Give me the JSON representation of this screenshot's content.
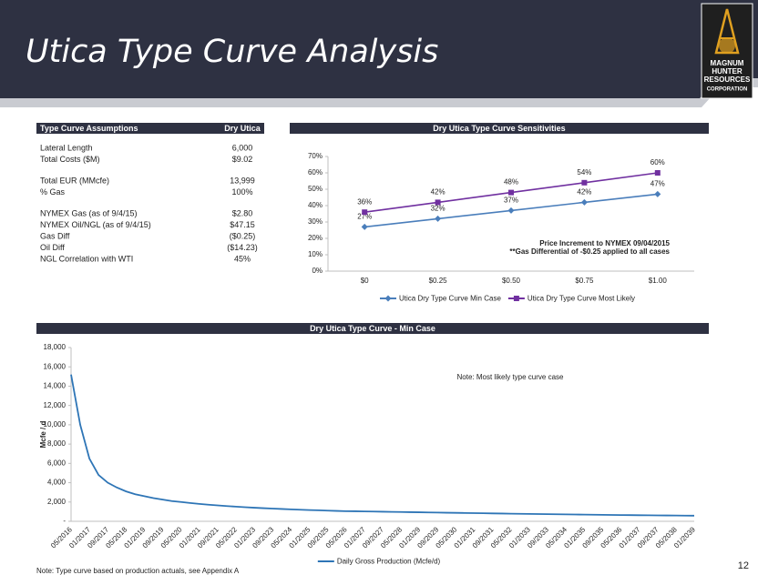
{
  "header": {
    "title": "Utica Type Curve Analysis",
    "logo": [
      "MAGNUM",
      "HUNTER",
      "RESOURCES",
      "CORPORATION"
    ]
  },
  "table": {
    "headers": [
      "Type Curve Assumptions",
      "Dry Utica"
    ],
    "rows": [
      [
        "Lateral Length",
        "6,000"
      ],
      [
        "Total Costs ($M)",
        "$9.02"
      ],
      [
        "Total EUR (MMcfe)",
        "13,999"
      ],
      [
        "% Gas",
        "100%"
      ],
      [
        "NYMEX Gas (as of 9/4/15)",
        "$2.80"
      ],
      [
        "NYMEX Oil/NGL (as of 9/4/15)",
        "$47.15"
      ],
      [
        "Gas Diff",
        "($0.25)"
      ],
      [
        "Oil Diff",
        "($14.23)"
      ],
      [
        "NGL Correlation with WTI",
        "45%"
      ]
    ]
  },
  "chart_data": [
    {
      "type": "line",
      "title": "Dry Utica Type Curve Sensitivities",
      "categories": [
        "$0",
        "$0.25",
        "$0.50",
        "$0.75",
        "$1.00"
      ],
      "series": [
        {
          "name": "Utica Dry Type Curve Min Case",
          "color": "#4a7ebb",
          "marker": "diamond",
          "values": [
            27,
            32,
            37,
            42,
            47
          ],
          "value_labels": [
            "27%",
            "32%",
            "37%",
            "42%",
            "47%"
          ]
        },
        {
          "name": "Utica Dry Type Curve Most Likely",
          "color": "#7030a0",
          "marker": "square",
          "values": [
            36,
            42,
            48,
            54,
            60
          ],
          "value_labels": [
            "36%",
            "42%",
            "48%",
            "54%",
            "60%"
          ]
        }
      ],
      "ylim": [
        0,
        70
      ],
      "yticks": [
        {
          "value": 0,
          "label": "0%"
        },
        {
          "value": 10,
          "label": "10%"
        },
        {
          "value": 20,
          "label": "20%"
        },
        {
          "value": 30,
          "label": "30%"
        },
        {
          "value": 40,
          "label": "40%"
        },
        {
          "value": 50,
          "label": "50%"
        },
        {
          "value": 60,
          "label": "60%"
        },
        {
          "value": 70,
          "label": "70%"
        }
      ],
      "annotations": [
        "Price Increment to NYMEX 09/04/2015",
        "**Gas  Differential of -$0.25 applied to all cases"
      ],
      "grid": false,
      "legend": "bottom"
    },
    {
      "type": "line",
      "title": "Dry Utica Type Curve - Min Case",
      "y_label": "Mcfe / d",
      "categories": [
        "05/2016",
        null,
        "01/2017",
        null,
        "09/2017",
        null,
        "05/2018",
        null,
        "01/2019",
        null,
        "09/2019",
        null,
        "05/2020",
        null,
        "01/2021",
        null,
        "09/2021",
        null,
        "05/2022",
        null,
        "01/2023",
        null,
        "09/2023",
        null,
        "05/2024",
        null,
        "01/2025",
        null,
        "09/2025",
        null,
        "05/2026",
        null,
        "01/2027",
        null,
        "09/2027",
        null,
        "05/2028",
        null,
        "01/2029",
        null,
        "09/2029",
        null,
        "05/2030",
        null,
        "01/2031",
        null,
        "09/2031",
        null,
        "05/2032",
        null,
        "01/2033",
        null,
        "09/2033",
        null,
        "05/2034",
        null,
        "01/2035",
        null,
        "09/2035",
        null,
        "05/2036",
        null,
        "01/2037",
        null,
        "09/2037",
        null,
        "05/2038",
        null,
        "01/2039"
      ],
      "series": [
        {
          "name": "Daily Gross Production (Mcfe/d)",
          "color": "#2e75b6",
          "values": [
            15200,
            10000,
            6500,
            4800,
            4000,
            3500,
            3100,
            2800,
            2600,
            2400,
            2250,
            2100,
            2000,
            1900,
            1800,
            1720,
            1650,
            1580,
            1520,
            1460,
            1410,
            1360,
            1320,
            1280,
            1240,
            1200,
            1170,
            1140,
            1110,
            1080,
            1050,
            1040,
            1025,
            1010,
            995,
            980,
            965,
            950,
            935,
            920,
            905,
            890,
            876,
            862,
            848,
            834,
            820,
            806,
            793,
            780,
            767,
            754,
            741,
            729,
            717,
            705,
            693,
            682,
            671,
            660,
            650,
            641,
            632,
            623,
            615,
            607,
            599,
            591,
            584
          ]
        }
      ],
      "ylim": [
        0,
        18000
      ],
      "yticks": [
        {
          "value": 0,
          "label": "-"
        },
        {
          "value": 2000,
          "label": "2,000"
        },
        {
          "value": 4000,
          "label": "4,000"
        },
        {
          "value": 6000,
          "label": "6,000"
        },
        {
          "value": 8000,
          "label": "8,000"
        },
        {
          "value": 10000,
          "label": "10,000"
        },
        {
          "value": 12000,
          "label": "12,000"
        },
        {
          "value": 14000,
          "label": "14,000"
        },
        {
          "value": 16000,
          "label": "16,000"
        },
        {
          "value": 18000,
          "label": "18,000"
        }
      ],
      "annotations": [
        "Note: Most likely type curve case"
      ],
      "grid": false,
      "legend": "bottom"
    }
  ],
  "footnote": "Note: Type curve based on production actuals, see Appendix A",
  "page_number": "12"
}
